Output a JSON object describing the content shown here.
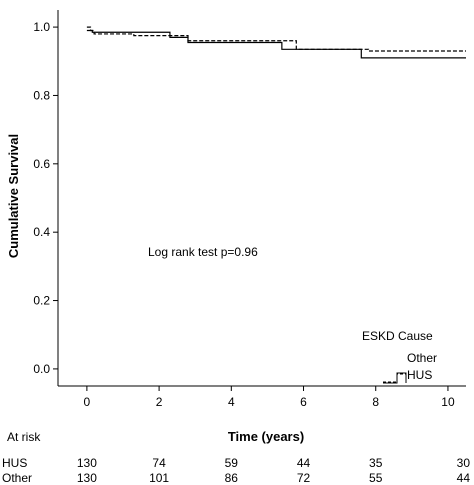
{
  "chart_data": {
    "type": "line",
    "subtype": "kaplan-meier",
    "ylabel": "Cumulative Survival",
    "xlabel": "Time (years)",
    "xlim": [
      -0.8,
      10.5
    ],
    "ylim": [
      -0.05,
      1.05
    ],
    "x_ticks": [
      "0",
      "2",
      "4",
      "6",
      "8",
      "10"
    ],
    "y_ticks": [
      "0.0",
      "0.2",
      "0.4",
      "0.6",
      "0.8",
      "1.0"
    ],
    "x_tick_values": [
      0,
      2,
      4,
      6,
      8,
      10
    ],
    "y_tick_values": [
      0.0,
      0.2,
      0.4,
      0.6,
      0.8,
      1.0
    ],
    "grid": false,
    "annotation": "Log rank test p=0.96",
    "legend": {
      "title": "ESKD Cause",
      "placement": "bottom-right",
      "entries": [
        "Other",
        "HUS"
      ]
    },
    "series": [
      {
        "name": "Other",
        "style": "dashed",
        "points": [
          [
            0,
            1.0
          ],
          [
            0.1,
            0.99
          ],
          [
            0.2,
            0.98
          ],
          [
            1.3,
            0.975
          ],
          [
            2.8,
            0.96
          ],
          [
            4.5,
            0.96
          ],
          [
            5.8,
            0.935
          ],
          [
            7.8,
            0.93
          ],
          [
            10.5,
            0.93
          ]
        ]
      },
      {
        "name": "HUS",
        "style": "solid",
        "points": [
          [
            0,
            0.99
          ],
          [
            0.15,
            0.985
          ],
          [
            2.3,
            0.97
          ],
          [
            2.8,
            0.955
          ],
          [
            5.4,
            0.935
          ],
          [
            7.6,
            0.91
          ],
          [
            10.5,
            0.91
          ]
        ]
      }
    ],
    "at_risk": {
      "label": "At risk",
      "rows": [
        {
          "name": "HUS",
          "values": [
            "130",
            "74",
            "59",
            "44",
            "35",
            "30"
          ]
        },
        {
          "name": "Other",
          "values": [
            "130",
            "101",
            "86",
            "72",
            "55",
            "44"
          ]
        }
      ]
    }
  }
}
